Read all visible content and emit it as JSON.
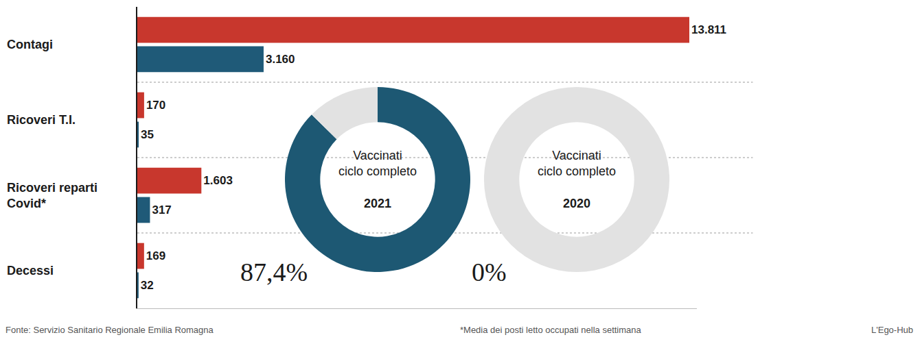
{
  "chart_data": [
    {
      "type": "bar",
      "orientation": "horizontal",
      "categories": [
        "Contagi",
        "Ricoveri T.I.",
        "Ricoveri reparti Covid*",
        "Decessi"
      ],
      "series": [
        {
          "color": "#c8372d",
          "values": [
            13811,
            170,
            1603,
            169
          ],
          "value_labels": [
            "13.811",
            "170",
            "1.603",
            "169"
          ]
        },
        {
          "color": "#1f5a78",
          "values": [
            3160,
            35,
            317,
            32
          ],
          "value_labels": [
            "3.160",
            "35",
            "317",
            "32"
          ]
        }
      ],
      "xlim": [
        0,
        14000
      ],
      "data_labels": true,
      "tick_labels": false,
      "grid": false,
      "source": "Fonte: Servizio Sanitario Regionale Emilia Romagna",
      "note": "*Media dei posti letto occupati nella settimana",
      "credit": "L'Ego-Hub"
    },
    {
      "type": "pie",
      "title": "Vaccinati ciclo completo",
      "subtitle": "2021",
      "values": [
        87.4,
        12.6
      ],
      "value_labels": [
        "87,4%",
        null
      ],
      "colors": [
        "#1d5873",
        "#e2e2e2"
      ]
    },
    {
      "type": "pie",
      "title": "Vaccinati ciclo completo",
      "subtitle": "2020",
      "values": [
        0,
        100
      ],
      "value_labels": [
        "0%",
        null
      ],
      "colors": [
        "#1d5873",
        "#e2e2e2"
      ]
    }
  ]
}
